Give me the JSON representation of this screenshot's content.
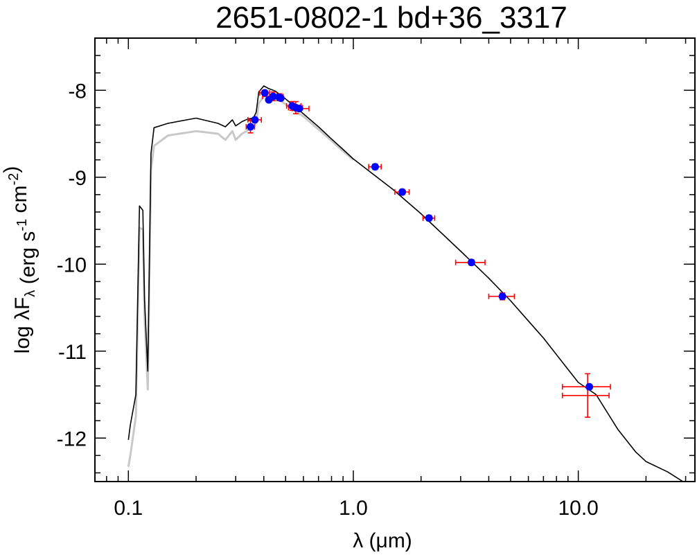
{
  "chart_data": {
    "type": "scatter",
    "title": "2651-0802-1   bd+36_3317",
    "xlabel": "λ (μm)",
    "ylabel": "log λF_λ (erg s^-1 cm^-2)",
    "x_scale": "log",
    "xlim": [
      0.071,
      33
    ],
    "ylim": [
      -12.5,
      -7.4
    ],
    "x_tick_labels": [
      {
        "value": 0.1,
        "label": "0.1"
      },
      {
        "value": 1.0,
        "label": "1.0"
      },
      {
        "value": 10.0,
        "label": "10.0"
      }
    ],
    "y_tick_labels": [
      {
        "value": -8,
        "label": "-8"
      },
      {
        "value": -9,
        "label": "-9"
      },
      {
        "value": -10,
        "label": "-10"
      },
      {
        "value": -11,
        "label": "-11"
      },
      {
        "value": -12,
        "label": "-12"
      }
    ],
    "grid": false,
    "legend": "none",
    "colors": {
      "model": "#000000",
      "model_unreddened": "#c8c8c8",
      "points": "#0000ff",
      "errorbars": "#ff0000"
    },
    "series": [
      {
        "kind": "line",
        "role": "model",
        "x": [
          0.1,
          0.102,
          0.108,
          0.112,
          0.116,
          0.118,
          0.122,
          0.126,
          0.13,
          0.15,
          0.2,
          0.25,
          0.27,
          0.29,
          0.3,
          0.32,
          0.34,
          0.36,
          0.37,
          0.38,
          0.4,
          0.42,
          0.45,
          0.5,
          0.55,
          0.6,
          0.7,
          0.8,
          0.9,
          1.0,
          1.5,
          2.0,
          3.0,
          4.0,
          5.0,
          7.0,
          10.0,
          12.0,
          15.0,
          18.0,
          20.0,
          25.0,
          30.0
        ],
        "y": [
          -12.02,
          -11.85,
          -11.5,
          -9.33,
          -9.38,
          -10.4,
          -11.23,
          -8.73,
          -8.43,
          -8.38,
          -8.32,
          -8.38,
          -8.42,
          -8.34,
          -8.41,
          -8.36,
          -8.33,
          -8.32,
          -8.25,
          -8.02,
          -7.95,
          -7.98,
          -8.01,
          -8.1,
          -8.19,
          -8.27,
          -8.42,
          -8.56,
          -8.68,
          -8.79,
          -9.14,
          -9.42,
          -9.85,
          -10.16,
          -10.42,
          -10.85,
          -11.36,
          -11.5,
          -11.9,
          -12.16,
          -12.27,
          -12.39,
          -12.52
        ]
      },
      {
        "kind": "line",
        "role": "model_unreddened",
        "x": [
          0.1,
          0.102,
          0.108,
          0.112,
          0.116,
          0.118,
          0.122,
          0.126,
          0.13,
          0.15,
          0.2,
          0.25,
          0.27,
          0.29,
          0.3,
          0.32,
          0.34,
          0.36,
          0.37,
          0.38,
          0.4,
          0.42,
          0.45,
          0.5,
          0.55,
          0.6,
          0.7,
          0.8,
          0.9,
          1.0
        ],
        "y": [
          -12.33,
          -12.2,
          -11.75,
          -9.58,
          -9.6,
          -10.6,
          -11.44,
          -8.92,
          -8.64,
          -8.52,
          -8.47,
          -8.5,
          -8.57,
          -8.47,
          -8.57,
          -8.5,
          -8.46,
          -8.44,
          -8.37,
          -8.15,
          -8.07,
          -8.07,
          -8.08,
          -8.16,
          -8.24,
          -8.3,
          -8.45,
          -8.58,
          -8.7,
          -8.8
        ]
      },
      {
        "kind": "points",
        "role": "photometry",
        "points": [
          {
            "x": 0.349,
            "y": -8.42,
            "xerr": [
              0.015,
              0.015
            ],
            "yerr": 0.07
          },
          {
            "x": 0.365,
            "y": -8.34,
            "xerr": [
              0.025,
              0.025
            ],
            "yerr": 0.0
          },
          {
            "x": 0.404,
            "y": -8.03,
            "xerr": [
              0.02,
              0.02
            ],
            "yerr": 0.03
          },
          {
            "x": 0.421,
            "y": -8.11,
            "xerr": [
              0.0,
              0.0
            ],
            "yerr": 0.0
          },
          {
            "x": 0.44,
            "y": -8.07,
            "xerr": [
              0.045,
              0.045
            ],
            "yerr": 0.05
          },
          {
            "x": 0.468,
            "y": -8.08,
            "xerr": [
              0.02,
              0.02
            ],
            "yerr": 0.04
          },
          {
            "x": 0.476,
            "y": -8.09,
            "xerr": [
              0.0,
              0.0
            ],
            "yerr": 0.0
          },
          {
            "x": 0.535,
            "y": -8.18,
            "xerr": [
              0.03,
              0.05
            ],
            "yerr": 0.05
          },
          {
            "x": 0.555,
            "y": -8.2,
            "xerr": [
              0.04,
              0.04
            ],
            "yerr": 0.07
          },
          {
            "x": 0.575,
            "y": -8.21,
            "xerr": [
              0.04,
              0.06
            ],
            "yerr": 0.0
          },
          {
            "x": 1.25,
            "y": -8.88,
            "xerr": [
              0.08,
              0.08
            ],
            "yerr": 0.03
          },
          {
            "x": 1.65,
            "y": -9.17,
            "xerr": [
              0.12,
              0.12
            ],
            "yerr": 0.03
          },
          {
            "x": 2.17,
            "y": -9.47,
            "xerr": [
              0.13,
              0.13
            ],
            "yerr": 0.03
          },
          {
            "x": 3.35,
            "y": -9.98,
            "xerr": [
              0.5,
              0.5
            ],
            "yerr": 0.03
          },
          {
            "x": 4.6,
            "y": -10.37,
            "xerr": [
              0.6,
              0.6
            ],
            "yerr": 0.04
          },
          {
            "x": 11.2,
            "y": -11.41,
            "xerr": [
              2.7,
              2.7
            ],
            "yerr": 0.0
          },
          {
            "x": 11.0,
            "y": -11.51,
            "xerr": [
              2.5,
              2.7
            ],
            "yerr": 0.25
          }
        ]
      }
    ]
  }
}
